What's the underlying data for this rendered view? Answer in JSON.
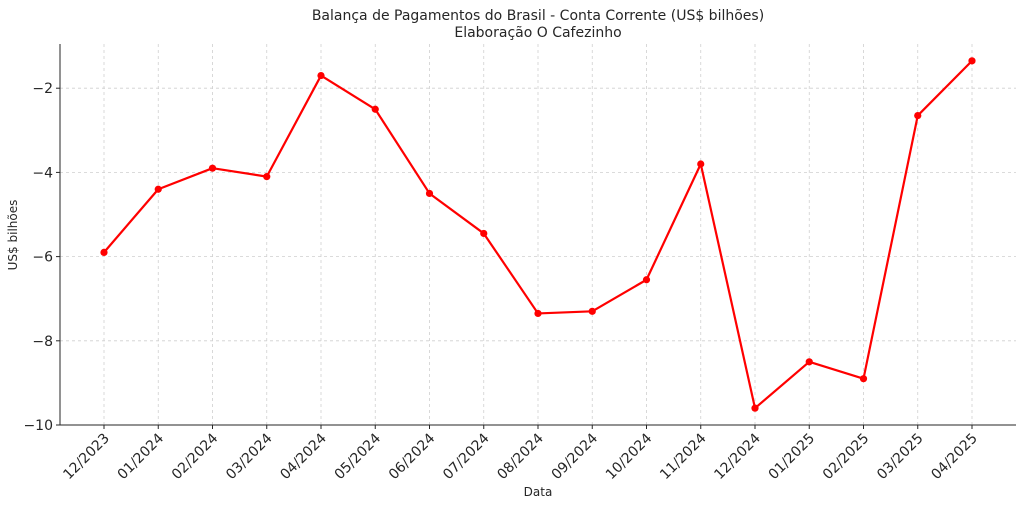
{
  "chart_data": {
    "type": "line",
    "title": "Balança de Pagamentos do Brasil - Conta Corrente (US$ bilhões)",
    "subtitle": "Elaboração O Cafezinho",
    "xlabel": "Data",
    "ylabel": "US$ bilhões",
    "categories": [
      "12/2023",
      "01/2024",
      "02/2024",
      "03/2024",
      "04/2024",
      "05/2024",
      "06/2024",
      "07/2024",
      "08/2024",
      "09/2024",
      "10/2024",
      "11/2024",
      "12/2024",
      "01/2025",
      "02/2025",
      "03/2025",
      "04/2025"
    ],
    "series": [
      {
        "color": "#ff0000",
        "values": [
          -5.9,
          -4.4,
          -3.9,
          -4.1,
          -1.7,
          -2.5,
          -4.5,
          -5.45,
          -7.35,
          -7.3,
          -6.55,
          -3.8,
          -9.6,
          -8.5,
          -8.9,
          -2.65,
          -1.35
        ]
      }
    ],
    "ylim": [
      -10,
      -0.95
    ],
    "yticks": [
      -10,
      -8,
      -6,
      -4,
      -2
    ],
    "ytick_labels": [
      "−10",
      "−8",
      "−6",
      "−4",
      "−2"
    ],
    "grid": true
  }
}
